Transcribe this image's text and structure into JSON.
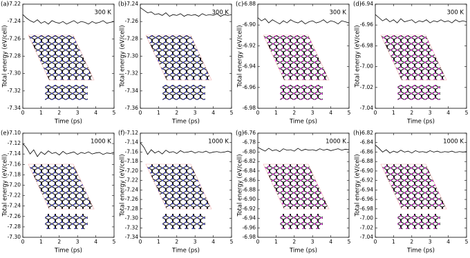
{
  "chart_data": [
    {
      "type": "line",
      "panel_label": "(a)",
      "annotation": "300 K",
      "xlabel": "Time (ps)",
      "ylabel": "Total energy (eV/cell)",
      "color": "#000000",
      "grid": false,
      "xlim": [
        0,
        5
      ],
      "xticks": [
        0,
        1,
        2,
        3,
        4,
        5
      ],
      "ylim": [
        -7.34,
        -7.22
      ],
      "yticks": [
        -7.22,
        -7.24,
        -7.26,
        -7.28,
        {
          "value": -7.3,
          "label": "-7.30"
        },
        -7.32,
        -7.34
      ],
      "x": [
        0,
        0.2,
        0.4,
        0.6,
        0.8,
        1,
        1.2,
        1.4,
        1.6,
        1.8,
        2,
        2.2,
        2.4,
        2.6,
        2.8,
        3,
        3.2,
        3.4,
        3.6,
        3.8,
        4,
        4.2,
        4.4,
        4.6,
        4.8,
        5
      ],
      "values": [
        -7.232,
        -7.236,
        -7.239,
        -7.241,
        -7.238,
        -7.242,
        -7.24,
        -7.243,
        -7.239,
        -7.241,
        -7.242,
        -7.24,
        -7.243,
        -7.241,
        -7.239,
        -7.242,
        -7.24,
        -7.241,
        -7.243,
        -7.24,
        -7.242,
        -7.241,
        -7.239,
        -7.242,
        -7.241,
        -7.24
      ]
    },
    {
      "type": "line",
      "panel_label": "(b)",
      "annotation": "300 K",
      "xlabel": "Time (ps)",
      "ylabel": "Total energy (eV/cell)",
      "color": "#000000",
      "grid": false,
      "xlim": [
        0,
        5
      ],
      "xticks": [
        0,
        1,
        2,
        3,
        4,
        5
      ],
      "ylim": [
        -7.36,
        -7.24
      ],
      "yticks": [
        -7.24,
        -7.26,
        -7.28,
        {
          "value": -7.3,
          "label": "-7.30"
        },
        -7.32,
        -7.34,
        -7.36
      ],
      "x": [
        0,
        0.2,
        0.4,
        0.6,
        0.8,
        1,
        1.2,
        1.4,
        1.6,
        1.8,
        2,
        2.2,
        2.4,
        2.6,
        2.8,
        3,
        3.2,
        3.4,
        3.6,
        3.8,
        4,
        4.2,
        4.4,
        4.6,
        4.8,
        5
      ],
      "values": [
        -7.244,
        -7.247,
        -7.25,
        -7.249,
        -7.252,
        -7.251,
        -7.253,
        -7.25,
        -7.254,
        -7.252,
        -7.253,
        -7.251,
        -7.254,
        -7.252,
        -7.253,
        -7.252,
        -7.254,
        -7.251,
        -7.253,
        -7.252,
        -7.253,
        -7.251,
        -7.254,
        -7.252,
        -7.253,
        -7.252
      ]
    },
    {
      "type": "line",
      "panel_label": "(c)",
      "annotation": "300 K",
      "xlabel": "Time (ps)",
      "ylabel": "Total energy (eV/cell)",
      "color": "#000000",
      "grid": false,
      "xlim": [
        0,
        5
      ],
      "xticks": [
        0,
        1,
        2,
        3,
        4,
        5
      ],
      "ylim": [
        -6.98,
        -6.88
      ],
      "yticks": [
        -6.88,
        {
          "value": -6.9,
          "label": "-6.90"
        },
        -6.92,
        -6.94,
        -6.96,
        -6.98
      ],
      "x": [
        0,
        0.2,
        0.4,
        0.6,
        0.8,
        1,
        1.2,
        1.4,
        1.6,
        1.8,
        2,
        2.2,
        2.4,
        2.6,
        2.8,
        3,
        3.2,
        3.4,
        3.6,
        3.8,
        4,
        4.2,
        4.4,
        4.6,
        4.8,
        5
      ],
      "values": [
        -6.893,
        -6.896,
        -6.894,
        -6.898,
        -6.895,
        -6.897,
        -6.899,
        -6.896,
        -6.898,
        -6.895,
        -6.897,
        -6.898,
        -6.896,
        -6.899,
        -6.897,
        -6.896,
        -6.898,
        -6.897,
        -6.895,
        -6.898,
        -6.896,
        -6.897,
        -6.899,
        -6.896,
        -6.897,
        -6.898
      ]
    },
    {
      "type": "line",
      "panel_label": "(d)",
      "annotation": "300 K",
      "xlabel": "Time (ps)",
      "ylabel": "Total energy (eV/cell)",
      "color": "#000000",
      "grid": false,
      "xlim": [
        0,
        5
      ],
      "xticks": [
        0,
        1,
        2,
        3,
        4,
        5
      ],
      "ylim": [
        -7.04,
        -6.94
      ],
      "yticks": [
        -6.94,
        -6.96,
        -6.98,
        {
          "value": -7.0,
          "label": "-7.00"
        },
        -7.02,
        -7.04
      ],
      "x": [
        0,
        0.2,
        0.4,
        0.6,
        0.8,
        1,
        1.2,
        1.4,
        1.6,
        1.8,
        2,
        2.2,
        2.4,
        2.6,
        2.8,
        3,
        3.2,
        3.4,
        3.6,
        3.8,
        4,
        4.2,
        4.4,
        4.6,
        4.8,
        5
      ],
      "values": [
        -6.95,
        -6.953,
        -6.956,
        -6.954,
        -6.957,
        -6.955,
        -6.958,
        -6.954,
        -6.957,
        -6.956,
        -6.955,
        -6.958,
        -6.956,
        -6.957,
        -6.955,
        -6.958,
        -6.956,
        -6.957,
        -6.955,
        -6.957,
        -6.956,
        -6.958,
        -6.955,
        -6.957,
        -6.956,
        -6.957
      ]
    },
    {
      "type": "line",
      "panel_label": "(e)",
      "annotation": "1000 K",
      "xlabel": "Time (ps)",
      "ylabel": "Total energy (eV/cell)",
      "color": "#000000",
      "grid": false,
      "xlim": [
        0,
        5
      ],
      "xticks": [
        0,
        1,
        2,
        3,
        4,
        5
      ],
      "ylim": [
        -7.3,
        -7.1
      ],
      "yticks": [
        {
          "value": -7.1,
          "label": "-7.10"
        },
        -7.12,
        -7.14,
        -7.16,
        -7.18,
        {
          "value": -7.2,
          "label": "-7.20"
        },
        -7.22,
        -7.24,
        -7.26,
        -7.28,
        {
          "value": -7.3,
          "label": "-7.30"
        }
      ],
      "x": [
        0,
        0.2,
        0.4,
        0.6,
        0.8,
        1,
        1.2,
        1.4,
        1.6,
        1.8,
        2,
        2.2,
        2.4,
        2.6,
        2.8,
        3,
        3.2,
        3.4,
        3.6,
        3.8,
        4,
        4.2,
        4.4,
        4.6,
        4.8,
        5
      ],
      "values": [
        -7.12,
        -7.128,
        -7.14,
        -7.132,
        -7.145,
        -7.136,
        -7.141,
        -7.134,
        -7.139,
        -7.137,
        -7.142,
        -7.135,
        -7.14,
        -7.138,
        -7.136,
        -7.141,
        -7.137,
        -7.139,
        -7.136,
        -7.14,
        -7.138,
        -7.137,
        -7.141,
        -7.138,
        -7.139,
        -7.137
      ]
    },
    {
      "type": "line",
      "panel_label": "(f)",
      "annotation": "1000 K",
      "xlabel": "Time (ps)",
      "ylabel": "Total energy (eV/cell)",
      "color": "#000000",
      "grid": false,
      "xlim": [
        0,
        5
      ],
      "xticks": [
        0,
        1,
        2,
        3,
        4,
        5
      ],
      "ylim": [
        -7.34,
        -7.12
      ],
      "yticks": [
        -7.12,
        -7.14,
        -7.16,
        -7.18,
        {
          "value": -7.2,
          "label": "-7.20"
        },
        -7.22,
        -7.24,
        -7.26,
        -7.28,
        {
          "value": -7.3,
          "label": "-7.30"
        },
        -7.32,
        -7.34
      ],
      "x": [
        0,
        0.2,
        0.4,
        0.6,
        0.8,
        1,
        1.2,
        1.4,
        1.6,
        1.8,
        2,
        2.2,
        2.4,
        2.6,
        2.8,
        3,
        3.2,
        3.4,
        3.6,
        3.8,
        4,
        4.2,
        4.4,
        4.6,
        4.8,
        5
      ],
      "values": [
        -7.14,
        -7.15,
        -7.165,
        -7.155,
        -7.162,
        -7.158,
        -7.164,
        -7.156,
        -7.161,
        -7.159,
        -7.163,
        -7.157,
        -7.161,
        -7.16,
        -7.158,
        -7.162,
        -7.159,
        -7.161,
        -7.158,
        -7.162,
        -7.16,
        -7.159,
        -7.161,
        -7.16,
        -7.158,
        -7.161
      ]
    },
    {
      "type": "line",
      "panel_label": "(g)",
      "annotation": "1000 K",
      "xlabel": "Time (ps)",
      "ylabel": "Total energy (eV/cell)",
      "color": "#000000",
      "grid": false,
      "xlim": [
        0,
        5
      ],
      "xticks": [
        0,
        1,
        2,
        3,
        4,
        5
      ],
      "ylim": [
        -6.98,
        -6.76
      ],
      "yticks": [
        -6.76,
        -6.78,
        {
          "value": -6.8,
          "label": "-6.80"
        },
        -6.82,
        -6.84,
        -6.86,
        -6.88,
        {
          "value": -6.9,
          "label": "-6.90"
        },
        -6.92,
        -6.94,
        -6.96,
        -6.98
      ],
      "x": [
        0,
        0.2,
        0.4,
        0.6,
        0.8,
        1,
        1.2,
        1.4,
        1.6,
        1.8,
        2,
        2.2,
        2.4,
        2.6,
        2.8,
        3,
        3.2,
        3.4,
        3.6,
        3.8,
        4,
        4.2,
        4.4,
        4.6,
        4.8,
        5
      ],
      "values": [
        -6.79,
        -6.794,
        -6.798,
        -6.792,
        -6.797,
        -6.795,
        -6.799,
        -6.793,
        -6.796,
        -6.795,
        -6.798,
        -6.792,
        -6.797,
        -6.794,
        -6.796,
        -6.795,
        -6.797,
        -6.793,
        -6.796,
        -6.794,
        -6.797,
        -6.795,
        -6.793,
        -6.796,
        -6.794,
        -6.795
      ]
    },
    {
      "type": "line",
      "panel_label": "(h)",
      "annotation": "1000 K",
      "xlabel": "Time (ps)",
      "ylabel": "Total energy (eV/cell)",
      "color": "#000000",
      "grid": false,
      "xlim": [
        0,
        5
      ],
      "xticks": [
        0,
        1,
        2,
        3,
        4,
        5
      ],
      "ylim": [
        -7.04,
        -6.82
      ],
      "yticks": [
        -6.82,
        -6.84,
        -6.86,
        -6.88,
        {
          "value": -6.9,
          "label": "-6.90"
        },
        -6.92,
        -6.94,
        -6.96,
        -6.98,
        {
          "value": -7.0,
          "label": "-7.00"
        },
        -7.02,
        -7.04
      ],
      "x": [
        0,
        0.2,
        0.4,
        0.6,
        0.8,
        1,
        1.2,
        1.4,
        1.6,
        1.8,
        2,
        2.2,
        2.4,
        2.6,
        2.8,
        3,
        3.2,
        3.4,
        3.6,
        3.8,
        4,
        4.2,
        4.4,
        4.6,
        4.8,
        5
      ],
      "values": [
        -6.845,
        -6.852,
        -6.86,
        -6.855,
        -6.862,
        -6.858,
        -6.861,
        -6.856,
        -6.86,
        -6.858,
        -6.862,
        -6.857,
        -6.86,
        -6.859,
        -6.861,
        -6.857,
        -6.86,
        -6.858,
        -6.861,
        -6.859,
        -6.86,
        -6.858,
        -6.861,
        -6.859,
        -6.86,
        -6.859
      ]
    }
  ]
}
